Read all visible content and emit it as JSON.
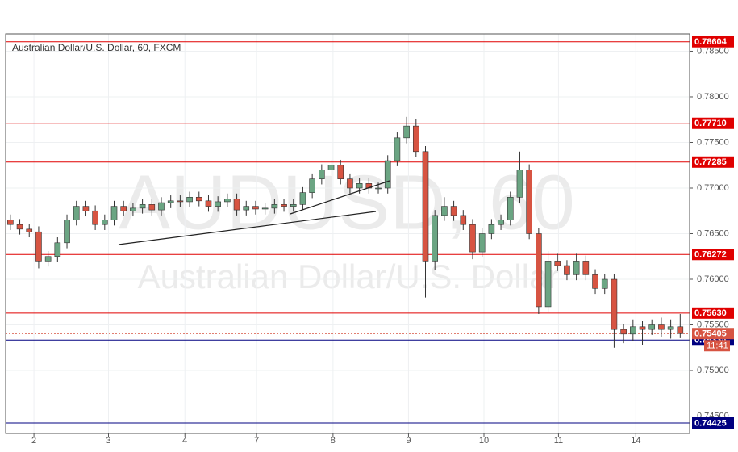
{
  "chart_data": {
    "type": "candlestick",
    "title": "Australian Dollar/U.S. Dollar, 60, FXCM",
    "watermark": "AUDUSD, 60",
    "watermark_subtitle": "Australian Dollar/U.S. Dollar",
    "up_color": "#6ba583",
    "down_color": "#d75442",
    "open": [
      0.7665,
      0.766,
      0.7655,
      0.7652,
      0.762,
      0.7625,
      0.764,
      0.7665,
      0.768,
      0.7675,
      0.766,
      0.7665,
      0.768,
      0.7675,
      0.7678,
      0.7682,
      0.7676,
      0.7684,
      0.7686,
      0.7685,
      0.769,
      0.7686,
      0.768,
      0.7685,
      0.7688,
      0.7676,
      0.768,
      0.7677,
      0.7678,
      0.7682,
      0.768,
      0.7682,
      0.7695,
      0.771,
      0.772,
      0.7725,
      0.771,
      0.77,
      0.7705,
      0.77,
      0.77,
      0.773,
      0.7755,
      0.7768,
      0.774,
      0.762,
      0.767,
      0.768,
      0.767,
      0.766,
      0.763,
      0.765,
      0.766,
      0.7665,
      0.769,
      0.772,
      0.765,
      0.757,
      0.762,
      0.7615,
      0.7605,
      0.762,
      0.7605,
      0.759,
      0.76,
      0.7545,
      0.754,
      0.7548,
      0.7545,
      0.755,
      0.7545,
      0.7548
    ],
    "high": [
      0.7671,
      0.7666,
      0.7661,
      0.7658,
      0.7631,
      0.7646,
      0.7671,
      0.7686,
      0.7686,
      0.7681,
      0.7671,
      0.7686,
      0.7686,
      0.7684,
      0.7688,
      0.7688,
      0.769,
      0.7692,
      0.7692,
      0.7696,
      0.7696,
      0.7692,
      0.7691,
      0.7694,
      0.7694,
      0.7686,
      0.7686,
      0.7684,
      0.7688,
      0.7688,
      0.7688,
      0.7701,
      0.7716,
      0.7726,
      0.7731,
      0.7731,
      0.7716,
      0.7711,
      0.7711,
      0.7706,
      0.7736,
      0.7761,
      0.7778,
      0.7776,
      0.7746,
      0.7676,
      0.769,
      0.7686,
      0.7676,
      0.7666,
      0.7656,
      0.7666,
      0.7671,
      0.7696,
      0.774,
      0.7726,
      0.7656,
      0.7631,
      0.7628,
      0.7621,
      0.7628,
      0.7626,
      0.7611,
      0.7606,
      0.7606,
      0.7551,
      0.7556,
      0.7554,
      0.7556,
      0.7558,
      0.7556,
      0.7562
    ],
    "low": [
      0.7654,
      0.7649,
      0.7646,
      0.7612,
      0.7614,
      0.7619,
      0.7634,
      0.7659,
      0.7669,
      0.7654,
      0.7654,
      0.7659,
      0.7669,
      0.7669,
      0.7672,
      0.767,
      0.767,
      0.7678,
      0.7679,
      0.7679,
      0.768,
      0.7674,
      0.7674,
      0.7679,
      0.767,
      0.767,
      0.7671,
      0.7671,
      0.7672,
      0.7674,
      0.7674,
      0.7676,
      0.7689,
      0.7704,
      0.7714,
      0.7704,
      0.7694,
      0.7694,
      0.7694,
      0.7694,
      0.7694,
      0.7724,
      0.7749,
      0.7734,
      0.758,
      0.761,
      0.7664,
      0.7664,
      0.7654,
      0.7622,
      0.7624,
      0.7644,
      0.7654,
      0.7659,
      0.7684,
      0.7644,
      0.7562,
      0.7564,
      0.7609,
      0.7599,
      0.7599,
      0.7599,
      0.7584,
      0.7584,
      0.7525,
      0.753,
      0.7532,
      0.7528,
      0.7539,
      0.7537,
      0.7535,
      0.75355
    ],
    "close": [
      0.766,
      0.7655,
      0.7652,
      0.762,
      0.7625,
      0.764,
      0.7665,
      0.768,
      0.7675,
      0.766,
      0.7665,
      0.768,
      0.7675,
      0.7678,
      0.7682,
      0.7676,
      0.7684,
      0.7686,
      0.7685,
      0.769,
      0.7686,
      0.768,
      0.7685,
      0.7688,
      0.7676,
      0.768,
      0.7677,
      0.7678,
      0.7682,
      0.768,
      0.7682,
      0.7695,
      0.771,
      0.772,
      0.7725,
      0.771,
      0.77,
      0.7705,
      0.77,
      0.77,
      0.773,
      0.7755,
      0.7768,
      0.774,
      0.762,
      0.767,
      0.768,
      0.767,
      0.766,
      0.763,
      0.765,
      0.766,
      0.7665,
      0.769,
      0.772,
      0.765,
      0.757,
      0.762,
      0.7615,
      0.7605,
      0.762,
      0.7605,
      0.759,
      0.76,
      0.7545,
      0.754,
      0.7548,
      0.7545,
      0.755,
      0.7545,
      0.7548,
      0.75405
    ],
    "xlim": [
      -0.5,
      72
    ],
    "xticks": [
      {
        "value": 2.5,
        "label": "2"
      },
      {
        "value": 10.4,
        "label": "3"
      },
      {
        "value": 18.5,
        "label": "4"
      },
      {
        "value": 26.1,
        "label": "7"
      },
      {
        "value": 34.2,
        "label": "8"
      },
      {
        "value": 42.2,
        "label": "9"
      },
      {
        "value": 50.2,
        "label": "10"
      },
      {
        "value": 58.1,
        "label": "11"
      },
      {
        "value": 66.3,
        "label": "14"
      }
    ],
    "ylim": [
      0.7431,
      0.7869
    ],
    "yticks": [
      {
        "value": 0.745,
        "label": "0.74500"
      },
      {
        "value": 0.75,
        "label": "0.75000"
      },
      {
        "value": 0.755,
        "label": "0.75500"
      },
      {
        "value": 0.76,
        "label": "0.76000"
      },
      {
        "value": 0.765,
        "label": "0.76500"
      },
      {
        "value": 0.77,
        "label": "0.77000"
      },
      {
        "value": 0.775,
        "label": "0.77500"
      },
      {
        "value": 0.78,
        "label": "0.78000"
      },
      {
        "value": 0.785,
        "label": "0.78500"
      }
    ],
    "grid": true,
    "levels": [
      {
        "value": 0.78604,
        "color": "#e00000"
      },
      {
        "value": {
          "value": 0.7771,
          "label": "0.77710"
        },
        "color": "#e00000"
      },
      {
        "value": 0.77285,
        "color": "#e00000"
      },
      {
        "value": 0.76272,
        "color": "#e00000"
      },
      {
        "value": {
          "value": 0.7563,
          "label": "0.75630"
        },
        "color": "#e00000"
      },
      {
        "value": 0.75334,
        "color": "#000080"
      },
      {
        "value": 0.74425,
        "color": "#000080"
      }
    ],
    "last_price": 0.75405,
    "countdown": "11:41"
  }
}
